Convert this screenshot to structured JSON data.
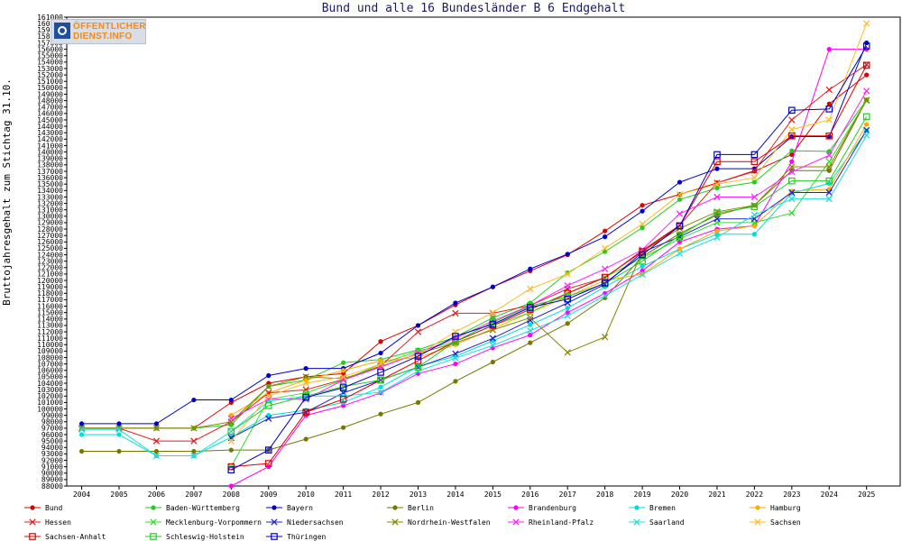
{
  "logo": {
    "line1": "ÖFFENTLICHER",
    "line2": "DIENST.INFO"
  },
  "chart_data": {
    "type": "line",
    "title": "Bund und alle 16 Bundesländer B 6 Endgehalt",
    "xlabel": "",
    "ylabel": "Bruttojahresgehalt zum Stichtag 31.10.",
    "x": [
      2004,
      2005,
      2006,
      2007,
      2008,
      2009,
      2010,
      2011,
      2012,
      2013,
      2014,
      2015,
      2016,
      2017,
      2018,
      2019,
      2020,
      2021,
      2022,
      2023,
      2024,
      2025
    ],
    "xlim": [
      2003.6,
      2025.9
    ],
    "ylim": [
      88000,
      161000
    ],
    "ytick_step": 1000,
    "grid": false,
    "legend": "bottom",
    "series": [
      {
        "name": "Bund",
        "color": "#dd0000",
        "marker": "dot",
        "values": [
          97000,
          97000,
          97000,
          97000,
          101000,
          104000,
          105000,
          105500,
          110500,
          113000,
          116200,
          119000,
          121500,
          124000,
          127700,
          131700,
          133400,
          135200,
          137000,
          139600,
          147500,
          152000
        ]
      },
      {
        "name": "Baden-Württemberg",
        "color": "#22cc22",
        "marker": "dot",
        "values": [
          97000,
          97000,
          97000,
          97000,
          97500,
          103500,
          104500,
          107200,
          107700,
          109200,
          111200,
          114200,
          116500,
          121200,
          124500,
          128200,
          132600,
          134400,
          135300,
          140200,
          140100,
          148100
        ]
      },
      {
        "name": "Bayern",
        "color": "#0000cc",
        "marker": "dot",
        "values": [
          97700,
          97700,
          97700,
          101400,
          101400,
          105200,
          106300,
          106300,
          108700,
          113000,
          116500,
          119000,
          121800,
          124100,
          126800,
          130800,
          135300,
          137400,
          137400,
          142400,
          142400,
          157000
        ]
      },
      {
        "name": "Berlin",
        "color": "#777700",
        "marker": "dot",
        "values": [
          93400,
          93400,
          93400,
          93400,
          93600,
          93600,
          95300,
          97100,
          99200,
          101000,
          104300,
          107300,
          110300,
          113300,
          117300,
          123700,
          127300,
          130200,
          131700,
          137100,
          137100,
          148100
        ]
      },
      {
        "name": "Brandenburg",
        "color": "#ff00ff",
        "marker": "dot",
        "values": [
          null,
          null,
          null,
          null,
          88000,
          91000,
          99000,
          100500,
          102500,
          105500,
          107000,
          109500,
          111500,
          115000,
          118000,
          121500,
          126000,
          128000,
          128500,
          138500,
          156000,
          156000
        ]
      },
      {
        "name": "Bremen",
        "color": "#00dddd",
        "marker": "dot",
        "values": [
          96000,
          96000,
          92700,
          92700,
          95600,
          99000,
          99800,
          101000,
          103400,
          106600,
          108200,
          110600,
          113100,
          115700,
          119000,
          122200,
          124900,
          127200,
          127200,
          133600,
          135100,
          143300
        ]
      },
      {
        "name": "Hamburg",
        "color": "#ffaa00",
        "marker": "dot",
        "values": [
          null,
          null,
          null,
          null,
          99000,
          102500,
          104500,
          106000,
          107500,
          108000,
          110000,
          112500,
          115000,
          117500,
          120000,
          121000,
          124900,
          127700,
          128500,
          133900,
          134200,
          144300
        ]
      },
      {
        "name": "Hessen",
        "color": "#dd2222",
        "marker": "x",
        "values": [
          97000,
          97000,
          95000,
          95000,
          98000,
          102500,
          103000,
          104600,
          106700,
          112000,
          114900,
          114900,
          116100,
          118700,
          120400,
          124700,
          128600,
          135200,
          137100,
          145000,
          149700,
          153600
        ]
      },
      {
        "name": "Mecklenburg-Vorpommern",
        "color": "#33dd33",
        "marker": "x",
        "values": [
          null,
          null,
          null,
          null,
          91000,
          101500,
          102500,
          104500,
          107000,
          109000,
          110500,
          113000,
          115000,
          118000,
          120500,
          123500,
          126500,
          129000,
          129000,
          130500,
          138500,
          148000
        ]
      },
      {
        "name": "Niedersachsen",
        "color": "#2222cc",
        "marker": "x",
        "values": [
          null,
          null,
          null,
          null,
          95500,
          98500,
          99500,
          102500,
          104500,
          106500,
          108600,
          111000,
          113800,
          116500,
          119400,
          124400,
          126800,
          129600,
          129600,
          133700,
          133700,
          143400
        ]
      },
      {
        "name": "Nordrhein-Westfalen",
        "color": "#888800",
        "marker": "x",
        "values": [
          97000,
          97000,
          97000,
          97000,
          98000,
          103500,
          105000,
          104700,
          106600,
          108600,
          110300,
          112300,
          114200,
          108800,
          111200,
          124500,
          128100,
          130700,
          131700,
          137700,
          137700,
          148100
        ]
      },
      {
        "name": "Rheinland-Pfalz",
        "color": "#ff22ff",
        "marker": "x",
        "values": [
          null,
          null,
          null,
          null,
          98500,
          101500,
          101500,
          104500,
          106500,
          108700,
          111000,
          113700,
          116100,
          119200,
          121800,
          124800,
          130400,
          133000,
          133000,
          136900,
          139500,
          149500
        ]
      },
      {
        "name": "Saarland",
        "color": "#22dddd",
        "marker": "x",
        "values": [
          96800,
          96800,
          92700,
          92700,
          96500,
          101200,
          102000,
          102000,
          102600,
          105900,
          107900,
          109900,
          112200,
          114500,
          117600,
          120900,
          124200,
          126700,
          130200,
          132700,
          132700,
          142600
        ]
      },
      {
        "name": "Sachsen",
        "color": "#ffbb22",
        "marker": "x",
        "values": [
          null,
          null,
          null,
          null,
          95000,
          102000,
          104000,
          105000,
          107000,
          108500,
          112000,
          115000,
          118700,
          121000,
          125000,
          128800,
          133400,
          135000,
          136000,
          143500,
          145000,
          160000
        ]
      },
      {
        "name": "Sachsen-Anhalt",
        "color": "#dd0000",
        "marker": "square",
        "values": [
          null,
          null,
          null,
          null,
          91000,
          91500,
          99500,
          101500,
          104500,
          107500,
          110500,
          113000,
          115500,
          118000,
          120500,
          124500,
          128500,
          138500,
          138500,
          142500,
          142500,
          153500
        ]
      },
      {
        "name": "Schleswig-Holstein",
        "color": "#22cc22",
        "marker": "square",
        "values": [
          null,
          null,
          null,
          null,
          96500,
          100500,
          102000,
          103500,
          104500,
          106500,
          110500,
          113500,
          116000,
          117500,
          119500,
          123000,
          127000,
          130500,
          131500,
          135500,
          135500,
          145500
        ]
      },
      {
        "name": "Thüringen",
        "color": "#0000cc",
        "marker": "square",
        "values": [
          null,
          null,
          null,
          null,
          90500,
          93600,
          101800,
          103300,
          105700,
          108200,
          111300,
          113200,
          115800,
          117100,
          119600,
          124000,
          128500,
          139600,
          139600,
          146500,
          146700,
          156500
        ]
      }
    ]
  }
}
